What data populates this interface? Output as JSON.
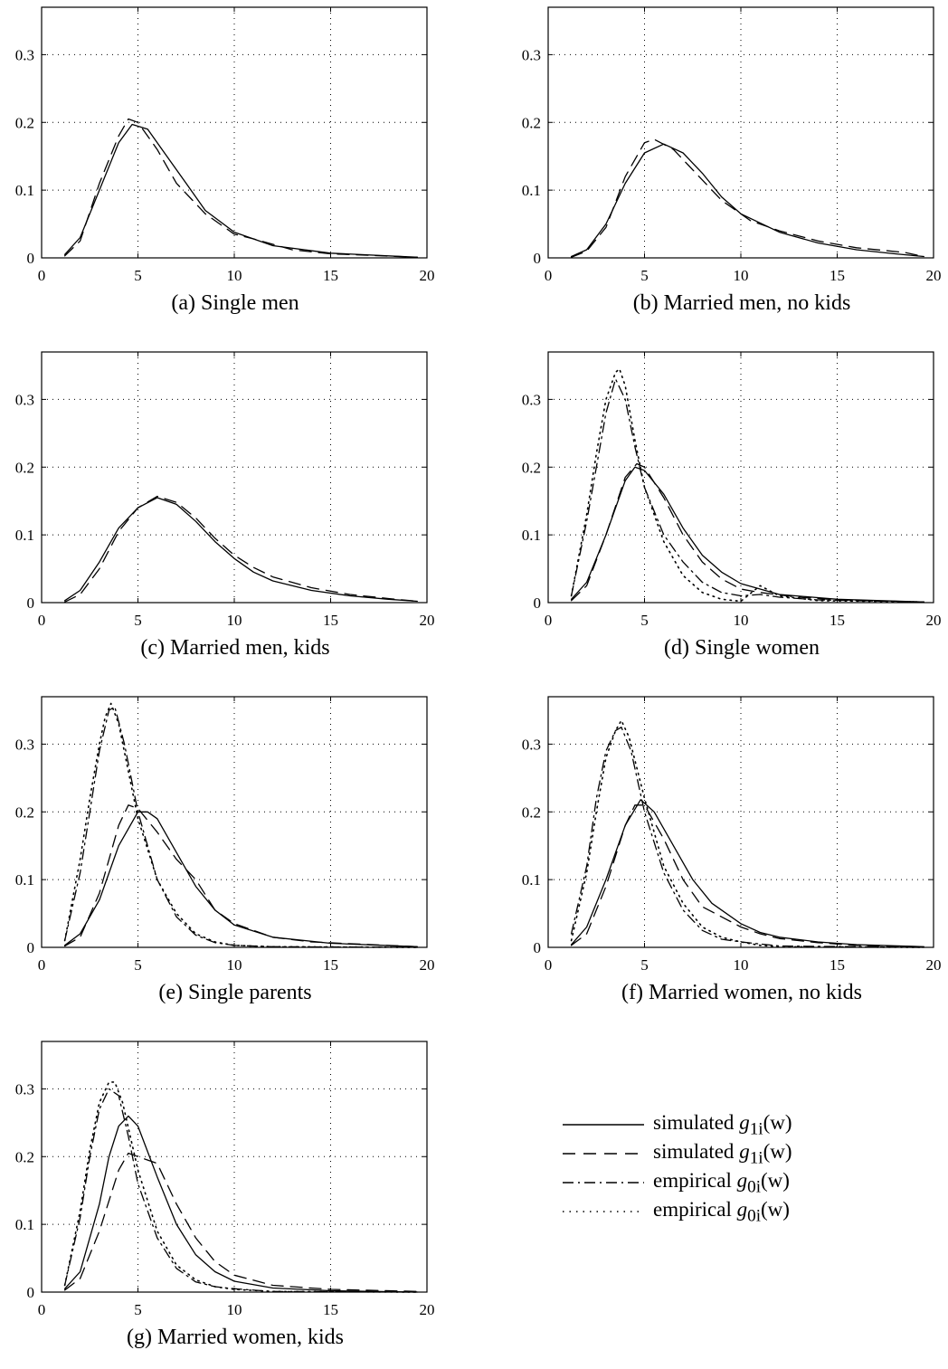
{
  "legend": [
    {
      "label": "simulated",
      "math": "g",
      "sub": "1i",
      "arg": "(w)",
      "style": "solid"
    },
    {
      "label": "simulated",
      "math": "g",
      "sub": "1i",
      "arg": "(w)",
      "style": "dashed"
    },
    {
      "label": "empirical",
      "math": "g",
      "sub": "0i",
      "arg": "(w)",
      "style": "dashdot"
    },
    {
      "label": "empirical",
      "math": "g",
      "sub": "0i",
      "arg": "(w)",
      "style": "dotted"
    }
  ],
  "chart_data": [
    {
      "type": "line",
      "caption": "(a) Single men",
      "xlim": [
        0,
        20
      ],
      "ylim": [
        0,
        0.37
      ],
      "xticks": [
        0,
        5,
        10,
        15,
        20
      ],
      "yticks": [
        0,
        0.1,
        0.2,
        0.3
      ],
      "xtick_labels": [
        "0",
        "5",
        "10",
        "15",
        "20"
      ],
      "ytick_labels": [
        "0",
        "0.1",
        "0.2",
        "0.3"
      ],
      "grid": true,
      "series": [
        {
          "style": "solid",
          "x": [
            1.2,
            2,
            3,
            4,
            4.7,
            5.5,
            6.5,
            7.5,
            8.5,
            10,
            12,
            15,
            19.5
          ],
          "y": [
            0.005,
            0.03,
            0.1,
            0.17,
            0.197,
            0.19,
            0.15,
            0.11,
            0.07,
            0.038,
            0.018,
            0.007,
            0.001
          ]
        },
        {
          "style": "dashed",
          "x": [
            1.2,
            2,
            3,
            4,
            4.5,
            5,
            6,
            7,
            8.5,
            10,
            11,
            13,
            15,
            19.5
          ],
          "y": [
            0.003,
            0.025,
            0.11,
            0.18,
            0.205,
            0.2,
            0.16,
            0.11,
            0.065,
            0.035,
            0.028,
            0.012,
            0.006,
            0.001
          ]
        }
      ]
    },
    {
      "type": "line",
      "caption": "(b) Married men, no kids",
      "xlim": [
        0,
        20
      ],
      "ylim": [
        0,
        0.37
      ],
      "xticks": [
        0,
        5,
        10,
        15,
        20
      ],
      "yticks": [
        0,
        0.1,
        0.2,
        0.3
      ],
      "xtick_labels": [
        "0",
        "5",
        "10",
        "15",
        "20"
      ],
      "ytick_labels": [
        "0",
        "0.1",
        "0.2",
        "0.3"
      ],
      "grid": true,
      "series": [
        {
          "style": "solid",
          "x": [
            1.2,
            2,
            3,
            4,
            5,
            6,
            7,
            8,
            9,
            10,
            12,
            14,
            16,
            18,
            19.5
          ],
          "y": [
            0.002,
            0.012,
            0.05,
            0.11,
            0.155,
            0.168,
            0.155,
            0.125,
            0.09,
            0.065,
            0.038,
            0.022,
            0.012,
            0.006,
            0.002
          ]
        },
        {
          "style": "dashed",
          "x": [
            1.2,
            2,
            3,
            4,
            5,
            5.5,
            6.5,
            7.5,
            9,
            10.5,
            12,
            14,
            16,
            18.5,
            19.5
          ],
          "y": [
            0.001,
            0.01,
            0.045,
            0.12,
            0.17,
            0.175,
            0.16,
            0.13,
            0.085,
            0.055,
            0.04,
            0.025,
            0.015,
            0.008,
            0.002
          ]
        }
      ]
    },
    {
      "type": "line",
      "caption": "(c) Married men, kids",
      "xlim": [
        0,
        20
      ],
      "ylim": [
        0,
        0.37
      ],
      "xticks": [
        0,
        5,
        10,
        15,
        20
      ],
      "yticks": [
        0,
        0.1,
        0.2,
        0.3
      ],
      "xtick_labels": [
        "0",
        "5",
        "10",
        "15",
        "20"
      ],
      "ytick_labels": [
        "0",
        "0.1",
        "0.2",
        "0.3"
      ],
      "grid": true,
      "series": [
        {
          "style": "solid",
          "x": [
            1.2,
            2,
            3,
            4,
            5,
            6,
            7,
            8,
            9,
            10,
            11,
            12,
            14,
            16,
            18,
            19.5
          ],
          "y": [
            0.003,
            0.018,
            0.06,
            0.11,
            0.14,
            0.155,
            0.145,
            0.12,
            0.09,
            0.065,
            0.045,
            0.032,
            0.018,
            0.01,
            0.005,
            0.002
          ]
        },
        {
          "style": "dashed",
          "x": [
            1.2,
            2,
            3,
            4,
            5,
            6,
            7,
            8,
            9,
            10,
            11,
            12,
            14,
            16,
            18,
            19.5
          ],
          "y": [
            0.001,
            0.012,
            0.05,
            0.105,
            0.14,
            0.157,
            0.148,
            0.125,
            0.095,
            0.07,
            0.052,
            0.038,
            0.022,
            0.012,
            0.006,
            0.002
          ]
        }
      ]
    },
    {
      "type": "line",
      "caption": "(d) Single women",
      "xlim": [
        0,
        20
      ],
      "ylim": [
        0,
        0.37
      ],
      "xticks": [
        0,
        5,
        10,
        15,
        20
      ],
      "yticks": [
        0,
        0.1,
        0.2,
        0.3
      ],
      "xtick_labels": [
        "0",
        "5",
        "10",
        "15",
        "20"
      ],
      "ytick_labels": [
        "0",
        "0.1",
        "0.2",
        "0.3"
      ],
      "grid": true,
      "series": [
        {
          "style": "solid",
          "x": [
            1.2,
            2,
            3,
            4,
            4.5,
            5,
            6,
            7,
            8,
            9,
            10,
            12,
            15,
            19.5
          ],
          "y": [
            0.005,
            0.03,
            0.1,
            0.18,
            0.2,
            0.195,
            0.16,
            0.11,
            0.07,
            0.045,
            0.028,
            0.012,
            0.005,
            0.001
          ]
        },
        {
          "style": "dashed",
          "x": [
            1.2,
            2,
            3,
            4,
            4.6,
            5,
            6,
            7,
            8,
            9,
            10,
            11,
            13,
            15,
            19.5
          ],
          "y": [
            0.003,
            0.025,
            0.1,
            0.185,
            0.205,
            0.2,
            0.155,
            0.1,
            0.06,
            0.035,
            0.02,
            0.015,
            0.008,
            0.004,
            0.001
          ]
        },
        {
          "style": "dashdot",
          "x": [
            1.2,
            2,
            2.5,
            3,
            3.5,
            4,
            4.5,
            5,
            6,
            7,
            8,
            9,
            10,
            11,
            12,
            14,
            19.5
          ],
          "y": [
            0.01,
            0.12,
            0.2,
            0.28,
            0.33,
            0.3,
            0.23,
            0.17,
            0.1,
            0.06,
            0.03,
            0.015,
            0.01,
            0.012,
            0.008,
            0.004,
            0.001
          ]
        },
        {
          "style": "dotted",
          "x": [
            1.2,
            2,
            2.5,
            3,
            3.5,
            3.7,
            4,
            4.5,
            5,
            6,
            7,
            8,
            9,
            10,
            11,
            12,
            14,
            19.5
          ],
          "y": [
            0.01,
            0.13,
            0.22,
            0.3,
            0.34,
            0.345,
            0.32,
            0.24,
            0.17,
            0.09,
            0.04,
            0.015,
            0.005,
            0.002,
            0.025,
            0.01,
            0.003,
            0.001
          ]
        }
      ]
    },
    {
      "type": "line",
      "caption": "(e) Single parents",
      "xlim": [
        0,
        20
      ],
      "ylim": [
        0,
        0.37
      ],
      "xticks": [
        0,
        5,
        10,
        15,
        20
      ],
      "yticks": [
        0,
        0.1,
        0.2,
        0.3
      ],
      "xtick_labels": [
        "0",
        "5",
        "10",
        "15",
        "20"
      ],
      "ytick_labels": [
        "0",
        "0.1",
        "0.2",
        "0.3"
      ],
      "grid": true,
      "series": [
        {
          "style": "solid",
          "x": [
            1.2,
            2,
            3,
            4,
            5,
            5.5,
            6,
            7,
            8,
            9,
            10,
            12,
            15,
            19.5
          ],
          "y": [
            0.003,
            0.02,
            0.07,
            0.15,
            0.2,
            0.2,
            0.19,
            0.14,
            0.09,
            0.055,
            0.033,
            0.015,
            0.006,
            0.001
          ]
        },
        {
          "style": "dashed",
          "x": [
            1.2,
            2,
            3,
            4,
            4.5,
            5,
            6,
            7,
            8,
            9,
            10,
            11,
            12,
            14,
            19.5
          ],
          "y": [
            0.002,
            0.015,
            0.08,
            0.18,
            0.21,
            0.205,
            0.17,
            0.13,
            0.1,
            0.055,
            0.035,
            0.025,
            0.015,
            0.008,
            0.001
          ]
        },
        {
          "style": "dashdot",
          "x": [
            1.2,
            2,
            2.5,
            3,
            3.5,
            3.8,
            4.3,
            5,
            6,
            7,
            8,
            9,
            10,
            12,
            19.5
          ],
          "y": [
            0.01,
            0.11,
            0.2,
            0.29,
            0.35,
            0.355,
            0.3,
            0.2,
            0.1,
            0.045,
            0.018,
            0.007,
            0.003,
            0.001,
            0.0
          ]
        },
        {
          "style": "dotted",
          "x": [
            1.2,
            2,
            2.5,
            3,
            3.3,
            3.6,
            4,
            4.5,
            5,
            6,
            7,
            8,
            9,
            10,
            12,
            19.5
          ],
          "y": [
            0.01,
            0.13,
            0.22,
            0.3,
            0.34,
            0.36,
            0.33,
            0.26,
            0.19,
            0.1,
            0.05,
            0.02,
            0.008,
            0.003,
            0.001,
            0.0
          ]
        }
      ]
    },
    {
      "type": "line",
      "caption": "(f) Married women, no kids",
      "xlim": [
        0,
        20
      ],
      "ylim": [
        0,
        0.37
      ],
      "xticks": [
        0,
        5,
        10,
        15,
        20
      ],
      "yticks": [
        0,
        0.1,
        0.2,
        0.3
      ],
      "xtick_labels": [
        "0",
        "5",
        "10",
        "15",
        "20"
      ],
      "ytick_labels": [
        "0",
        "0.1",
        "0.2",
        "0.3"
      ],
      "grid": true,
      "series": [
        {
          "style": "solid",
          "x": [
            1.2,
            2,
            3,
            4,
            4.8,
            5.5,
            6.5,
            7.5,
            8.5,
            10,
            11,
            12,
            14,
            16,
            19.5
          ],
          "y": [
            0.004,
            0.03,
            0.1,
            0.18,
            0.218,
            0.2,
            0.15,
            0.1,
            0.065,
            0.035,
            0.022,
            0.015,
            0.008,
            0.004,
            0.001
          ]
        },
        {
          "style": "dashed",
          "x": [
            1.2,
            2,
            3,
            4,
            4.5,
            5,
            6,
            7,
            8,
            9,
            10,
            11,
            12,
            14,
            16,
            19.5
          ],
          "y": [
            0.003,
            0.02,
            0.09,
            0.18,
            0.21,
            0.21,
            0.16,
            0.1,
            0.06,
            0.045,
            0.03,
            0.02,
            0.013,
            0.007,
            0.003,
            0.001
          ]
        },
        {
          "style": "dashdot",
          "x": [
            1.2,
            2,
            2.5,
            3,
            3.5,
            3.8,
            4.3,
            5,
            6,
            7,
            8,
            9,
            10,
            12,
            19.5
          ],
          "y": [
            0.02,
            0.12,
            0.22,
            0.29,
            0.32,
            0.325,
            0.29,
            0.2,
            0.11,
            0.055,
            0.025,
            0.012,
            0.008,
            0.002,
            0.0
          ]
        },
        {
          "style": "dotted",
          "x": [
            1.2,
            2,
            2.5,
            3,
            3.5,
            3.8,
            4.2,
            5,
            6,
            7,
            8,
            9,
            10,
            11,
            12,
            19.5
          ],
          "y": [
            0.01,
            0.11,
            0.2,
            0.28,
            0.32,
            0.335,
            0.31,
            0.22,
            0.12,
            0.065,
            0.03,
            0.015,
            0.008,
            0.003,
            0.001,
            0.0
          ]
        }
      ]
    },
    {
      "type": "line",
      "caption": "(g) Married women, kids",
      "xlim": [
        0,
        20
      ],
      "ylim": [
        0,
        0.37
      ],
      "xticks": [
        0,
        5,
        10,
        15,
        20
      ],
      "yticks": [
        0,
        0.1,
        0.2,
        0.3
      ],
      "xtick_labels": [
        "0",
        "5",
        "10",
        "15",
        "20"
      ],
      "ytick_labels": [
        "0",
        "0.1",
        "0.2",
        "0.3"
      ],
      "grid": true,
      "series": [
        {
          "style": "solid",
          "x": [
            1.2,
            2,
            3,
            3.5,
            4,
            4.5,
            5,
            6,
            7,
            8,
            9,
            10,
            12,
            15,
            19.5
          ],
          "y": [
            0.005,
            0.03,
            0.13,
            0.2,
            0.245,
            0.26,
            0.245,
            0.17,
            0.1,
            0.055,
            0.03,
            0.016,
            0.006,
            0.002,
            0.0
          ]
        },
        {
          "style": "dashed",
          "x": [
            1.2,
            2,
            3,
            4,
            4.5,
            5,
            6,
            7,
            8,
            9,
            10,
            12,
            15,
            19.5
          ],
          "y": [
            0.003,
            0.02,
            0.09,
            0.18,
            0.205,
            0.2,
            0.19,
            0.13,
            0.08,
            0.045,
            0.025,
            0.01,
            0.004,
            0.001
          ]
        },
        {
          "style": "dashdot",
          "x": [
            1.2,
            2,
            2.5,
            3,
            3.5,
            4,
            4.5,
            5,
            6,
            7,
            8,
            9,
            10,
            12,
            19.5
          ],
          "y": [
            0.01,
            0.11,
            0.2,
            0.27,
            0.3,
            0.29,
            0.23,
            0.16,
            0.08,
            0.035,
            0.015,
            0.008,
            0.005,
            0.001,
            0.0
          ]
        },
        {
          "style": "dotted",
          "x": [
            1.2,
            2,
            2.5,
            3,
            3.5,
            3.8,
            4.2,
            5,
            6,
            7,
            8,
            9,
            10,
            12,
            19.5
          ],
          "y": [
            0.01,
            0.12,
            0.21,
            0.28,
            0.31,
            0.31,
            0.28,
            0.18,
            0.09,
            0.04,
            0.018,
            0.008,
            0.004,
            0.001,
            0.0
          ]
        }
      ]
    }
  ]
}
